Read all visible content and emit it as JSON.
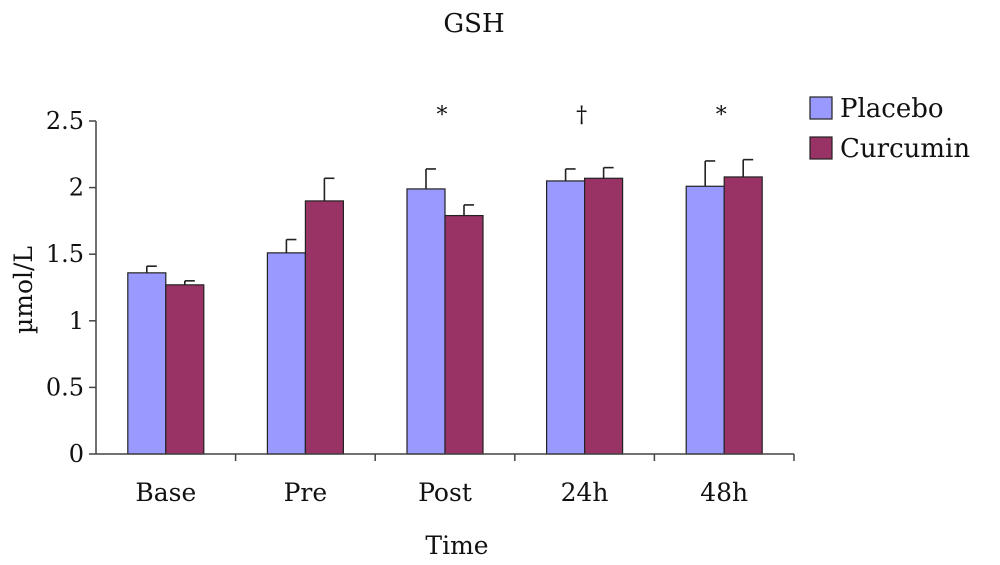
{
  "chart_data": {
    "type": "bar",
    "title": "GSH",
    "xlabel": "Time",
    "ylabel": "µmol/L",
    "categories": [
      "Base",
      "Pre",
      "Post",
      "24h",
      "48h"
    ],
    "series": [
      {
        "name": "Placebo",
        "color": "#9999ff",
        "values": [
          1.36,
          1.51,
          1.99,
          2.05,
          2.01
        ],
        "errors": [
          0.05,
          0.1,
          0.15,
          0.09,
          0.19
        ]
      },
      {
        "name": "Curcumin",
        "color": "#993366",
        "values": [
          1.27,
          1.9,
          1.79,
          2.07,
          2.08
        ],
        "errors": [
          0.03,
          0.17,
          0.08,
          0.08,
          0.13
        ]
      }
    ],
    "ylim": [
      0,
      2.5
    ],
    "yticks": [
      "0",
      "0.5",
      "1",
      "1.5",
      "2",
      "2.5"
    ],
    "significance": [
      "",
      "",
      "*",
      "†",
      "*"
    ],
    "grid": false,
    "legend_position": "top-right"
  }
}
